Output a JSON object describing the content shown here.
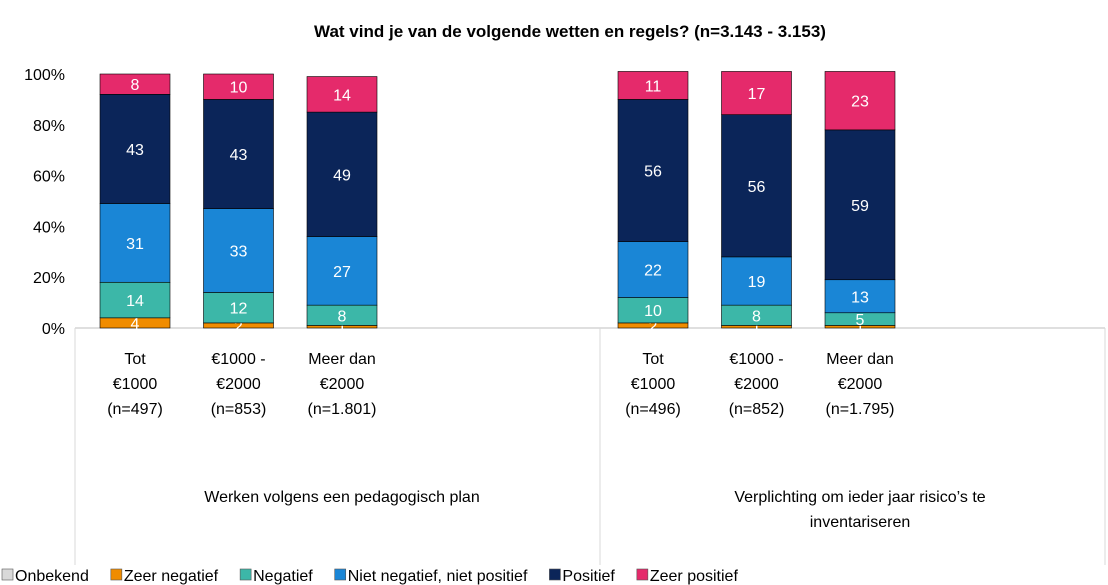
{
  "chart_data": {
    "type": "stacked_bar",
    "title": "Wat vind je van de volgende wetten en regels? (n=3.143 - 3.153)",
    "groups": [
      [
        "Werken volgens een pedagogisch plan"
      ],
      [
        "Verplichting om ieder jaar risico’s te",
        "inventariseren"
      ]
    ],
    "categories": [
      [
        "Tot",
        "€1000",
        "(n=497)"
      ],
      [
        "€1000 -",
        "€2000",
        "(n=853)"
      ],
      [
        "Meer dan",
        "€2000",
        "(n=1.801)"
      ],
      [
        "Tot",
        "€1000",
        "(n=496)"
      ],
      [
        "€1000 -",
        "€2000",
        "(n=852)"
      ],
      [
        "Meer dan",
        "€2000",
        "(n=1.795)"
      ]
    ],
    "series": [
      {
        "name": "Onbekend",
        "color": "#d9d9d9",
        "values": [
          0,
          0,
          0,
          0,
          0,
          0
        ]
      },
      {
        "name": "Zeer negatief",
        "color": "#f08c00",
        "values": [
          4,
          2,
          1,
          2,
          1,
          1
        ]
      },
      {
        "name": "Negatief",
        "color": "#3cb7a8",
        "values": [
          14,
          12,
          8,
          10,
          8,
          5
        ]
      },
      {
        "name": "Niet negatief, niet positief",
        "color": "#1a86d6",
        "values": [
          31,
          33,
          27,
          22,
          19,
          13
        ]
      },
      {
        "name": "Positief",
        "color": "#0b2559",
        "values": [
          43,
          43,
          49,
          56,
          56,
          59
        ]
      },
      {
        "name": "Zeer positief",
        "color": "#e52a6b",
        "values": [
          8,
          10,
          14,
          11,
          17,
          23
        ]
      }
    ],
    "ylim": [
      0,
      100
    ],
    "yticks": [
      {
        "value": 0,
        "label": "0%"
      },
      {
        "value": 20,
        "label": "20%"
      },
      {
        "value": 40,
        "label": "40%"
      },
      {
        "value": 60,
        "label": "60%"
      },
      {
        "value": 80,
        "label": "80%"
      },
      {
        "value": 100,
        "label": "100%"
      }
    ],
    "legend": "bottom"
  }
}
